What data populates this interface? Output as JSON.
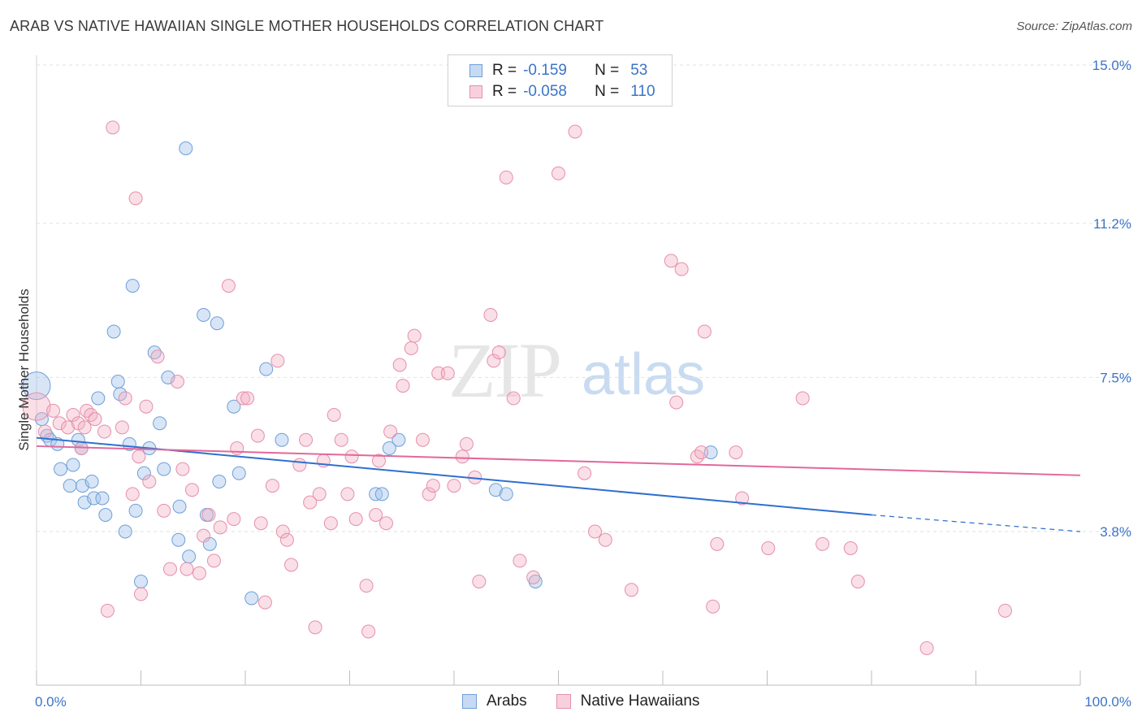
{
  "title": "ARAB VS NATIVE HAWAIIAN SINGLE MOTHER HOUSEHOLDS CORRELATION CHART",
  "source": "Source: ZipAtlas.com",
  "watermark": {
    "zip": "ZIP",
    "atlas": "atlas"
  },
  "legend": {
    "rows": [
      {
        "r_label": "R =",
        "r_value": "-0.159",
        "n_label": "N =",
        "n_value": "53",
        "color": "#a7c6ec"
      },
      {
        "r_label": "R =",
        "r_value": "-0.058",
        "n_label": "N =",
        "n_value": "110",
        "color": "#f2afc4"
      }
    ]
  },
  "bottom_legend": [
    {
      "label": "Arabs",
      "color": "#a7c6ec"
    },
    {
      "label": "Native Hawaiians",
      "color": "#f2afc4"
    }
  ],
  "chart_data": {
    "type": "scatter",
    "ylabel": "Single Mother Households",
    "xlim": [
      0,
      100
    ],
    "ylim": [
      0,
      15.5
    ],
    "y_ticks": [
      {
        "value": 3.8,
        "label": "3.8%"
      },
      {
        "value": 7.5,
        "label": "7.5%"
      },
      {
        "value": 11.2,
        "label": "11.2%"
      },
      {
        "value": 15.0,
        "label": "15.0%"
      }
    ],
    "x_tick_labels": {
      "min": "0.0%",
      "max": "100.0%"
    },
    "grid": true,
    "series": [
      {
        "name": "Arabs",
        "color": "#a7c6ec",
        "stroke": "#6f9fd8",
        "line_color": "#2f6fd0",
        "trend": {
          "x0": 0,
          "y0": 6.05,
          "x1": 80,
          "y1": 4.2,
          "dash_to_x": 100,
          "dash_y": 3.8
        },
        "points": [
          [
            0.0,
            7.3
          ],
          [
            0.5,
            6.5
          ],
          [
            1,
            6.1
          ],
          [
            1.3,
            6.0
          ],
          [
            2,
            5.9
          ],
          [
            2.3,
            5.3
          ],
          [
            3.2,
            4.9
          ],
          [
            3.5,
            5.4
          ],
          [
            4,
            6.0
          ],
          [
            4.3,
            5.8
          ],
          [
            4.4,
            4.9
          ],
          [
            4.6,
            4.5
          ],
          [
            5.3,
            5.0
          ],
          [
            5.5,
            4.6
          ],
          [
            5.9,
            7.0
          ],
          [
            6.3,
            4.6
          ],
          [
            6.6,
            4.2
          ],
          [
            7.4,
            8.6
          ],
          [
            7.8,
            7.4
          ],
          [
            8,
            7.1
          ],
          [
            8.5,
            3.8
          ],
          [
            8.9,
            5.9
          ],
          [
            9.2,
            9.7
          ],
          [
            9.5,
            4.3
          ],
          [
            10,
            2.6
          ],
          [
            10.3,
            5.2
          ],
          [
            10.8,
            5.8
          ],
          [
            11.3,
            8.1
          ],
          [
            11.8,
            6.4
          ],
          [
            12.2,
            5.3
          ],
          [
            12.6,
            7.5
          ],
          [
            13.6,
            3.6
          ],
          [
            13.7,
            4.4
          ],
          [
            14.3,
            13.0
          ],
          [
            14.6,
            3.2
          ],
          [
            16,
            9.0
          ],
          [
            16.3,
            4.2
          ],
          [
            16.6,
            3.5
          ],
          [
            17.3,
            8.8
          ],
          [
            17.5,
            5.0
          ],
          [
            18.9,
            6.8
          ],
          [
            19.4,
            5.2
          ],
          [
            20.6,
            2.2
          ],
          [
            22,
            7.7
          ],
          [
            23.5,
            6.0
          ],
          [
            32.5,
            4.7
          ],
          [
            33.1,
            4.7
          ],
          [
            33.8,
            5.8
          ],
          [
            34.7,
            6.0
          ],
          [
            44,
            4.8
          ],
          [
            45,
            4.7
          ],
          [
            47.8,
            2.6
          ],
          [
            64.6,
            5.7
          ]
        ]
      },
      {
        "name": "Native Hawaiians",
        "color": "#f2afc4",
        "stroke": "#e58fac",
        "line_color": "#e2689a",
        "trend": {
          "x0": 0,
          "y0": 5.85,
          "x1": 100,
          "y1": 5.15
        },
        "points": [
          [
            0,
            6.8
          ],
          [
            0.8,
            6.2
          ],
          [
            1.6,
            6.7
          ],
          [
            2.2,
            6.4
          ],
          [
            3,
            6.3
          ],
          [
            3.5,
            6.6
          ],
          [
            4,
            6.4
          ],
          [
            4.3,
            5.8
          ],
          [
            4.6,
            6.3
          ],
          [
            4.8,
            6.7
          ],
          [
            5.2,
            6.6
          ],
          [
            5.6,
            6.5
          ],
          [
            6.5,
            6.2
          ],
          [
            6.8,
            1.9
          ],
          [
            7.3,
            13.5
          ],
          [
            8.2,
            6.3
          ],
          [
            8.5,
            7.0
          ],
          [
            9.2,
            4.7
          ],
          [
            9.8,
            5.6
          ],
          [
            9.5,
            11.8
          ],
          [
            10,
            2.3
          ],
          [
            10.5,
            6.8
          ],
          [
            10.8,
            5.0
          ],
          [
            11.6,
            8.0
          ],
          [
            12.2,
            4.3
          ],
          [
            12.8,
            2.9
          ],
          [
            13.5,
            7.4
          ],
          [
            14,
            5.3
          ],
          [
            14.4,
            2.9
          ],
          [
            14.9,
            4.8
          ],
          [
            15.6,
            2.8
          ],
          [
            16,
            3.7
          ],
          [
            16.5,
            4.2
          ],
          [
            17,
            3.1
          ],
          [
            17.6,
            3.9
          ],
          [
            18.4,
            9.7
          ],
          [
            18.9,
            4.1
          ],
          [
            19.2,
            5.8
          ],
          [
            19.8,
            7.0
          ],
          [
            20.2,
            7.0
          ],
          [
            21.2,
            6.1
          ],
          [
            21.5,
            4.0
          ],
          [
            21.9,
            2.1
          ],
          [
            22.6,
            4.9
          ],
          [
            23.1,
            7.9
          ],
          [
            23.6,
            3.8
          ],
          [
            24,
            3.6
          ],
          [
            24.4,
            3.0
          ],
          [
            25.2,
            5.4
          ],
          [
            25.8,
            6.0
          ],
          [
            26.2,
            4.5
          ],
          [
            26.7,
            1.5
          ],
          [
            27.1,
            4.7
          ],
          [
            27.5,
            5.5
          ],
          [
            28.2,
            4.0
          ],
          [
            28.5,
            6.6
          ],
          [
            29.2,
            6.0
          ],
          [
            29.8,
            4.7
          ],
          [
            30.2,
            5.6
          ],
          [
            30.6,
            4.1
          ],
          [
            31.6,
            2.5
          ],
          [
            31.8,
            1.4
          ],
          [
            32.5,
            4.2
          ],
          [
            32.8,
            5.5
          ],
          [
            33.5,
            4.0
          ],
          [
            33.9,
            6.2
          ],
          [
            34.8,
            7.8
          ],
          [
            35.1,
            7.3
          ],
          [
            35.9,
            8.2
          ],
          [
            36.2,
            8.5
          ],
          [
            37,
            6.0
          ],
          [
            37.6,
            4.7
          ],
          [
            38,
            4.9
          ],
          [
            38.5,
            7.6
          ],
          [
            39.4,
            7.6
          ],
          [
            40,
            4.9
          ],
          [
            40.8,
            5.6
          ],
          [
            41.2,
            5.9
          ],
          [
            42,
            5.1
          ],
          [
            42.4,
            2.6
          ],
          [
            43.5,
            9.0
          ],
          [
            43.8,
            7.9
          ],
          [
            44.3,
            8.1
          ],
          [
            45,
            12.3
          ],
          [
            45.7,
            7.0
          ],
          [
            46.3,
            3.1
          ],
          [
            47.6,
            2.7
          ],
          [
            50,
            12.4
          ],
          [
            51.6,
            13.4
          ],
          [
            53.5,
            3.8
          ],
          [
            54.5,
            3.6
          ],
          [
            57,
            2.4
          ],
          [
            60.8,
            10.3
          ],
          [
            61.3,
            6.9
          ],
          [
            61.8,
            10.1
          ],
          [
            63.3,
            5.6
          ],
          [
            63.7,
            5.7
          ],
          [
            64,
            8.6
          ],
          [
            64.8,
            2.0
          ],
          [
            65.2,
            3.5
          ],
          [
            67,
            5.7
          ],
          [
            67.6,
            4.6
          ],
          [
            70.1,
            3.4
          ],
          [
            73.4,
            7.0
          ],
          [
            75.3,
            3.5
          ],
          [
            78,
            3.4
          ],
          [
            78.7,
            2.6
          ],
          [
            92.8,
            1.9
          ],
          [
            85.3,
            1.0
          ],
          [
            52.5,
            5.2
          ]
        ]
      }
    ]
  }
}
